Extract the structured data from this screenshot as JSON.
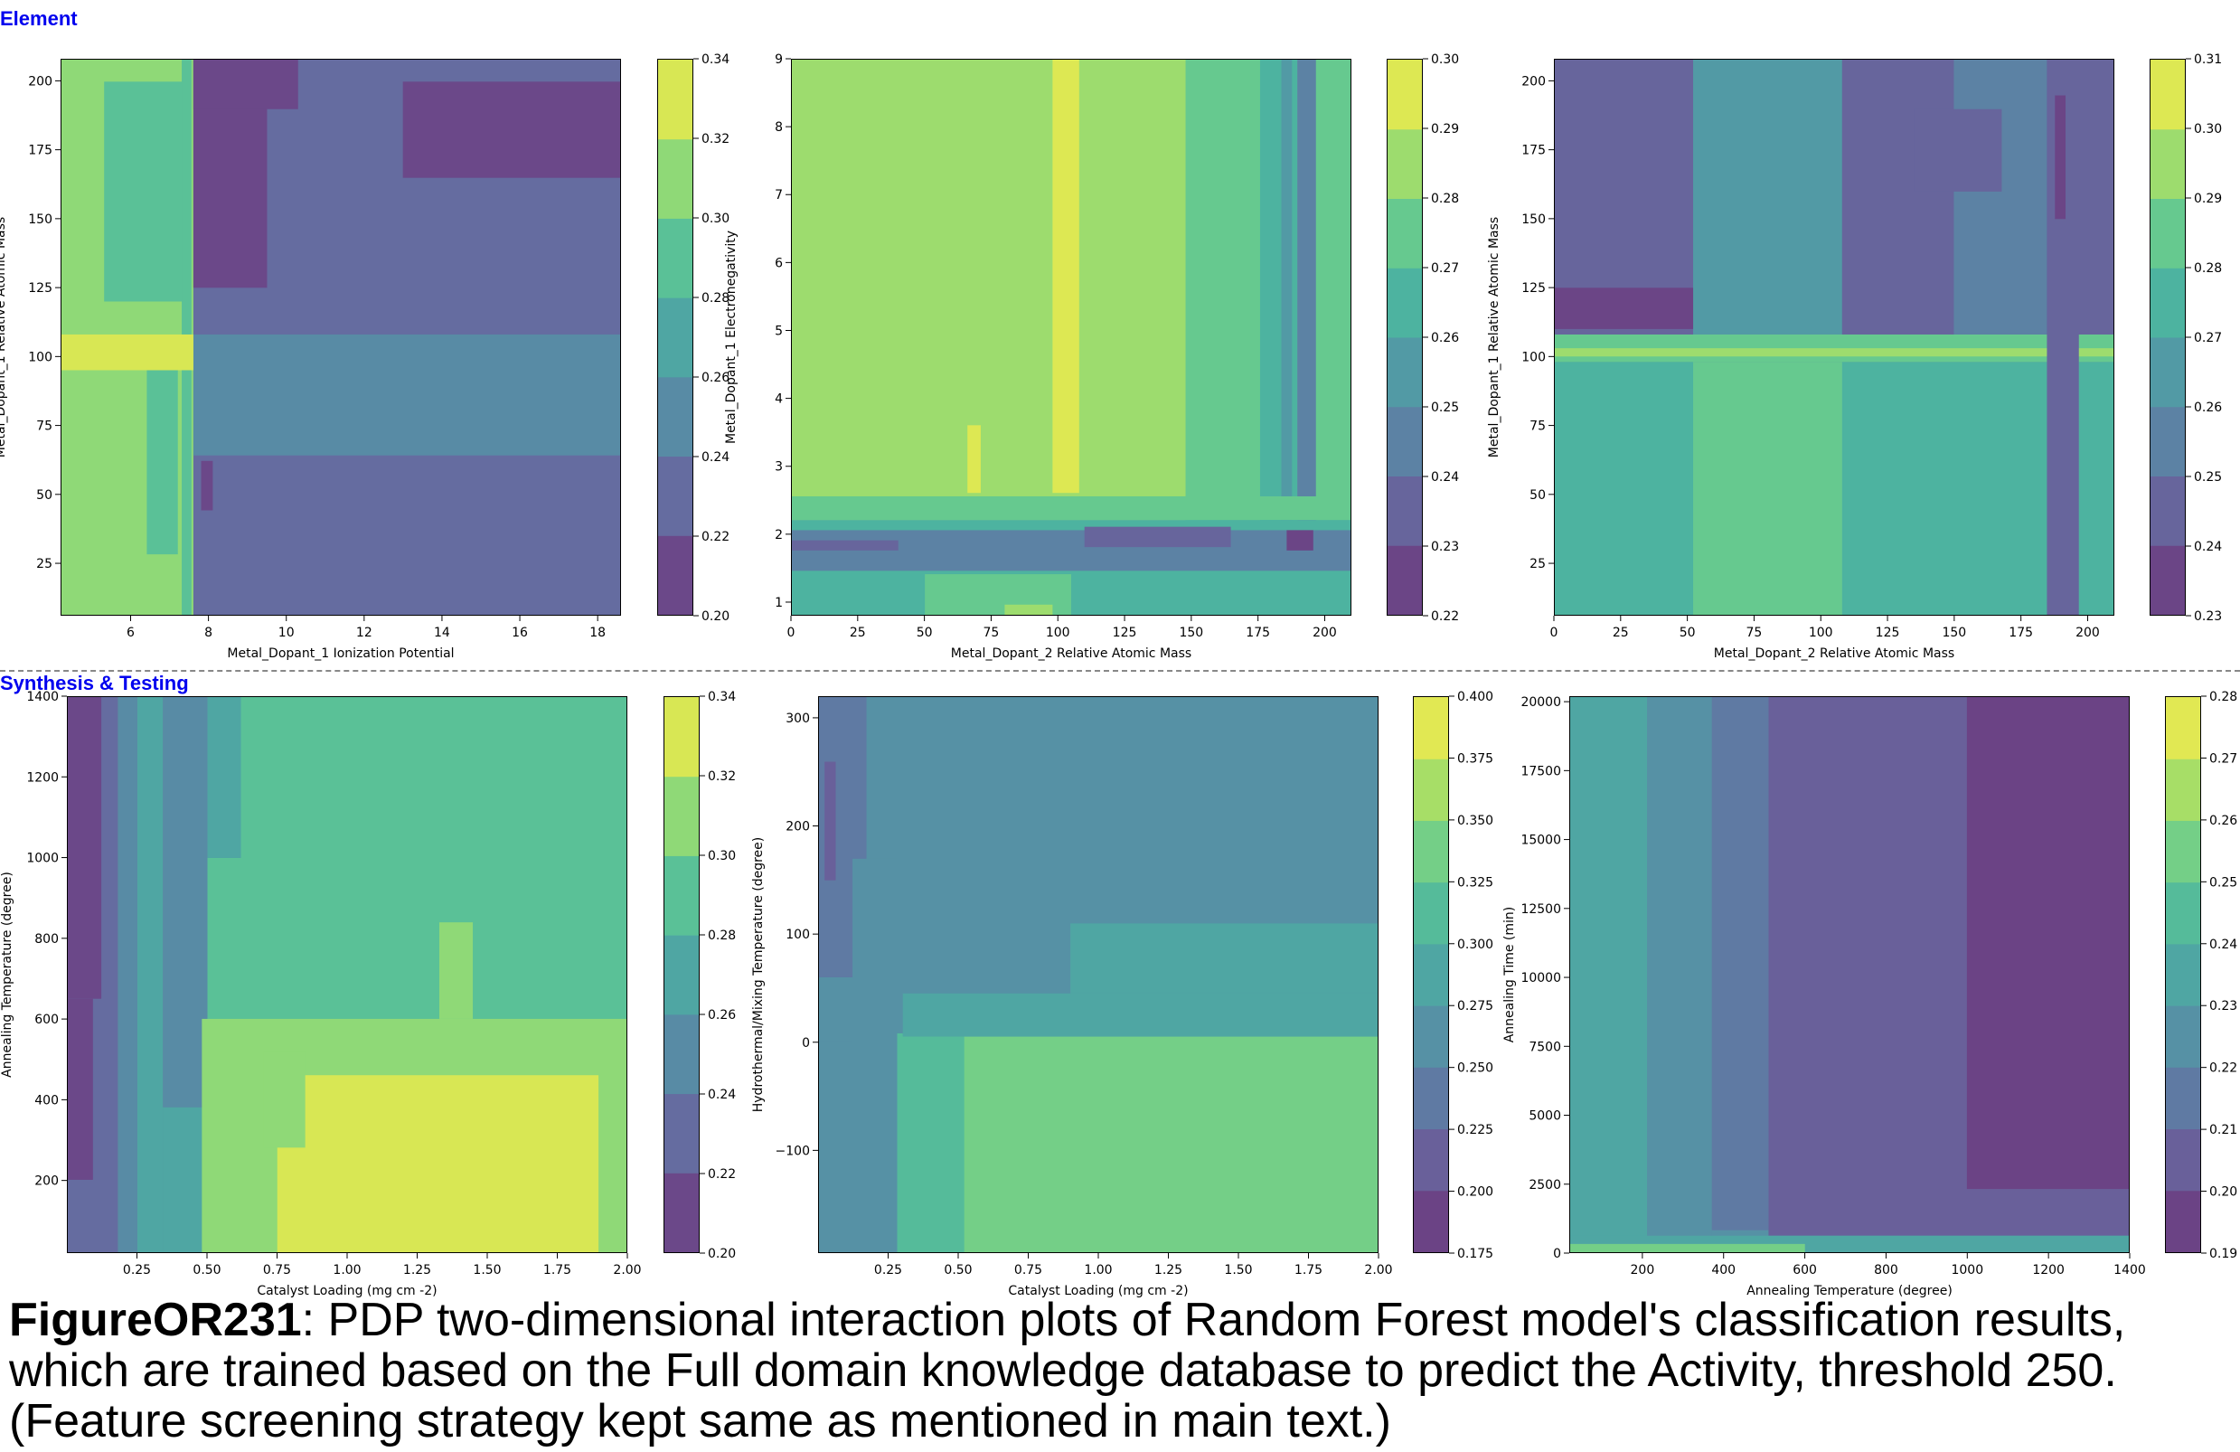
{
  "sections": {
    "top": "Element",
    "bottom": "Synthesis & Testing"
  },
  "caption": {
    "figure_id": "FigureOR231",
    "text": ": PDP two-dimensional interaction plots of Random Forest model's classification results, which are trained based on the Full domain knowledge database to predict the Activity, threshold 250. (Feature screening strategy kept same as mentioned in main text.)"
  },
  "palette": [
    "#440154",
    "#482878",
    "#3e4989",
    "#31688e",
    "#26828e",
    "#1f9e89",
    "#35b779",
    "#6ece58",
    "#b5de2b",
    "#fde725"
  ],
  "chart_data": [
    {
      "type": "heatmap",
      "title": "",
      "xlabel": "Metal_Dopant_1 Ionization Potential",
      "ylabel": "Metal_Dopant_1 Relative Atomic Mass",
      "xlim": [
        4.2,
        18.6
      ],
      "ylim": [
        6,
        208
      ],
      "xticks": [
        6,
        8,
        10,
        12,
        14,
        16,
        18
      ],
      "yticks": [
        25,
        50,
        75,
        100,
        125,
        150,
        175,
        200
      ],
      "colorbar": {
        "min": 0.2,
        "max": 0.34,
        "ticks": [
          0.2,
          0.22,
          0.24,
          0.26,
          0.28,
          0.3,
          0.32,
          0.34
        ],
        "labels": [
          "0.20",
          "0.22",
          "0.24",
          "0.26",
          "0.28",
          "0.30",
          "0.32",
          "0.34"
        ]
      },
      "background": 0.23,
      "regions": [
        {
          "x0": 4.2,
          "x1": 7.6,
          "y0": 6,
          "y1": 208,
          "v": 0.31
        },
        {
          "x0": 5.3,
          "x1": 7.4,
          "y0": 120,
          "y1": 200,
          "v": 0.29
        },
        {
          "x0": 6.4,
          "x1": 7.2,
          "y0": 28,
          "y1": 95,
          "v": 0.29
        },
        {
          "x0": 7.3,
          "x1": 7.55,
          "y0": 6,
          "y1": 208,
          "v": 0.29
        },
        {
          "x0": 7.6,
          "x1": 18.6,
          "y0": 64,
          "y1": 108,
          "v": 0.25
        },
        {
          "x0": 4.2,
          "x1": 7.6,
          "y0": 95,
          "y1": 108,
          "v": 0.33
        },
        {
          "x0": 7.6,
          "x1": 9.5,
          "y0": 125,
          "y1": 208,
          "v": 0.21
        },
        {
          "x0": 7.6,
          "x1": 10.3,
          "y0": 190,
          "y1": 208,
          "v": 0.21
        },
        {
          "x0": 13.0,
          "x1": 18.6,
          "y0": 165,
          "y1": 200,
          "v": 0.21
        },
        {
          "x0": 7.8,
          "x1": 8.1,
          "y0": 44,
          "y1": 62,
          "v": 0.21
        }
      ]
    },
    {
      "type": "heatmap",
      "title": "",
      "xlabel": "Metal_Dopant_2 Relative Atomic Mass",
      "ylabel": "Metal_Dopant_1 Electronegativity",
      "xlim": [
        0,
        210
      ],
      "ylim": [
        0.8,
        9
      ],
      "xticks": [
        0,
        25,
        50,
        75,
        100,
        125,
        150,
        175,
        200
      ],
      "yticks": [
        1,
        2,
        3,
        4,
        5,
        6,
        7,
        8,
        9
      ],
      "colorbar": {
        "min": 0.22,
        "max": 0.3,
        "ticks": [
          0.22,
          0.23,
          0.24,
          0.25,
          0.26,
          0.27,
          0.28,
          0.29,
          0.3
        ],
        "labels": [
          "0.22",
          "0.23",
          "0.24",
          "0.25",
          "0.26",
          "0.27",
          "0.28",
          "0.29",
          "0.30"
        ]
      },
      "background": 0.28,
      "regions": [
        {
          "x0": 98,
          "x1": 108,
          "y0": 2.6,
          "y1": 9,
          "v": 0.295
        },
        {
          "x0": 66,
          "x1": 71,
          "y0": 2.6,
          "y1": 3.6,
          "v": 0.295
        },
        {
          "x0": 148,
          "x1": 210,
          "y0": 0.8,
          "y1": 9,
          "v": 0.27
        },
        {
          "x0": 176,
          "x1": 190,
          "y0": 0.8,
          "y1": 9,
          "v": 0.26
        },
        {
          "x0": 184,
          "x1": 188,
          "y0": 0.8,
          "y1": 9,
          "v": 0.25
        },
        {
          "x0": 190,
          "x1": 197,
          "y0": 0.8,
          "y1": 9,
          "v": 0.245
        },
        {
          "x0": 0,
          "x1": 210,
          "y0": 2.2,
          "y1": 2.55,
          "v": 0.27
        },
        {
          "x0": 0,
          "x1": 210,
          "y0": 0.8,
          "y1": 2.2,
          "v": 0.26
        },
        {
          "x0": 0,
          "x1": 210,
          "y0": 1.45,
          "y1": 2.05,
          "v": 0.245
        },
        {
          "x0": 0,
          "x1": 40,
          "y0": 1.75,
          "y1": 1.9,
          "v": 0.235
        },
        {
          "x0": 110,
          "x1": 165,
          "y0": 1.8,
          "y1": 2.1,
          "v": 0.235
        },
        {
          "x0": 50,
          "x1": 105,
          "y0": 0.8,
          "y1": 1.4,
          "v": 0.27
        },
        {
          "x0": 80,
          "x1": 98,
          "y0": 0.8,
          "y1": 0.95,
          "v": 0.28
        },
        {
          "x0": 186,
          "x1": 196,
          "y0": 1.75,
          "y1": 2.05,
          "v": 0.225
        }
      ]
    },
    {
      "type": "heatmap",
      "title": "",
      "xlabel": "Metal_Dopant_2 Relative Atomic Mass",
      "ylabel": "Metal_Dopant_1 Relative Atomic Mass",
      "xlim": [
        0,
        210
      ],
      "ylim": [
        6,
        208
      ],
      "xticks": [
        0,
        25,
        50,
        75,
        100,
        125,
        150,
        175,
        200
      ],
      "yticks": [
        25,
        50,
        75,
        100,
        125,
        150,
        175,
        200
      ],
      "colorbar": {
        "min": 0.23,
        "max": 0.31,
        "ticks": [
          0.23,
          0.24,
          0.25,
          0.26,
          0.27,
          0.28,
          0.29,
          0.3,
          0.31
        ],
        "labels": [
          "0.23",
          "0.24",
          "0.25",
          "0.26",
          "0.27",
          "0.28",
          "0.29",
          "0.30",
          "0.31"
        ]
      },
      "background": 0.255,
      "regions": [
        {
          "x0": 0,
          "x1": 210,
          "y0": 6,
          "y1": 98,
          "v": 0.275
        },
        {
          "x0": 0,
          "x1": 210,
          "y0": 108,
          "y1": 208,
          "v": 0.255
        },
        {
          "x0": 0,
          "x1": 52,
          "y0": 6,
          "y1": 98,
          "v": 0.27
        },
        {
          "x0": 52,
          "x1": 108,
          "y0": 6,
          "y1": 98,
          "v": 0.28
        },
        {
          "x0": 0,
          "x1": 210,
          "y0": 98,
          "y1": 108,
          "v": 0.285
        },
        {
          "x0": 0,
          "x1": 210,
          "y0": 100,
          "y1": 103,
          "v": 0.3
        },
        {
          "x0": 52,
          "x1": 108,
          "y0": 108,
          "y1": 208,
          "v": 0.265
        },
        {
          "x0": 0,
          "x1": 52,
          "y0": 108,
          "y1": 208,
          "v": 0.25
        },
        {
          "x0": 108,
          "x1": 210,
          "y0": 108,
          "y1": 208,
          "v": 0.25
        },
        {
          "x0": 150,
          "x1": 185,
          "y0": 108,
          "y1": 208,
          "v": 0.255
        },
        {
          "x0": 185,
          "x1": 197,
          "y0": 6,
          "y1": 208,
          "v": 0.245
        },
        {
          "x0": 188,
          "x1": 192,
          "y0": 150,
          "y1": 195,
          "v": 0.235
        },
        {
          "x0": 135,
          "x1": 168,
          "y0": 160,
          "y1": 190,
          "v": 0.245
        },
        {
          "x0": 0,
          "x1": 52,
          "y0": 110,
          "y1": 125,
          "v": 0.24
        }
      ]
    },
    {
      "type": "heatmap",
      "title": "",
      "xlabel": "Catalyst Loading (mg cm -2)",
      "ylabel": "Annealing Temperature (degree)",
      "xlim": [
        0,
        2
      ],
      "ylim": [
        20,
        1400
      ],
      "xticks": [
        0.25,
        0.5,
        0.75,
        1.0,
        1.25,
        1.5,
        1.75,
        2.0
      ],
      "xticklabels": [
        "0.25",
        "0.50",
        "0.75",
        "1.00",
        "1.25",
        "1.50",
        "1.75",
        "2.00"
      ],
      "yticks": [
        200,
        400,
        600,
        800,
        1000,
        1200,
        1400
      ],
      "colorbar": {
        "min": 0.2,
        "max": 0.34,
        "ticks": [
          0.2,
          0.22,
          0.24,
          0.26,
          0.28,
          0.3,
          0.32,
          0.34
        ],
        "labels": [
          "0.20",
          "0.22",
          "0.24",
          "0.26",
          "0.28",
          "0.30",
          "0.32",
          "0.34"
        ]
      },
      "background": 0.29,
      "regions": [
        {
          "x0": 0,
          "x1": 0.18,
          "y0": 20,
          "y1": 1400,
          "v": 0.23
        },
        {
          "x0": 0,
          "x1": 0.12,
          "y0": 650,
          "y1": 1400,
          "v": 0.21
        },
        {
          "x0": 0,
          "x1": 0.09,
          "y0": 200,
          "y1": 650,
          "v": 0.21
        },
        {
          "x0": 0.18,
          "x1": 0.25,
          "y0": 20,
          "y1": 1400,
          "v": 0.25
        },
        {
          "x0": 0.25,
          "x1": 0.34,
          "y0": 20,
          "y1": 1400,
          "v": 0.27
        },
        {
          "x0": 0.34,
          "x1": 0.5,
          "y0": 20,
          "y1": 1400,
          "v": 0.25
        },
        {
          "x0": 0.34,
          "x1": 0.5,
          "y0": 20,
          "y1": 380,
          "v": 0.27
        },
        {
          "x0": 0.5,
          "x1": 0.62,
          "y0": 1000,
          "y1": 1400,
          "v": 0.27
        },
        {
          "x0": 0.48,
          "x1": 2.0,
          "y0": 20,
          "y1": 600,
          "v": 0.31
        },
        {
          "x0": 1.33,
          "x1": 1.45,
          "y0": 600,
          "y1": 840,
          "v": 0.31
        },
        {
          "x0": 0.75,
          "x1": 1.9,
          "y0": 20,
          "y1": 460,
          "v": 0.33
        },
        {
          "x0": 0.7,
          "x1": 0.85,
          "y0": 280,
          "y1": 520,
          "v": 0.31
        }
      ]
    },
    {
      "type": "heatmap",
      "title": "",
      "xlabel": "Catalyst Loading (mg cm -2)",
      "ylabel": "Hydrothermal/Mixing Temperature (degree)",
      "xlim": [
        0,
        2
      ],
      "ylim": [
        -195,
        320
      ],
      "xticks": [
        0.25,
        0.5,
        0.75,
        1.0,
        1.25,
        1.5,
        1.75,
        2.0
      ],
      "xticklabels": [
        "0.25",
        "0.50",
        "0.75",
        "1.00",
        "1.25",
        "1.50",
        "1.75",
        "2.00"
      ],
      "yticks": [
        -100,
        0,
        100,
        200,
        300
      ],
      "yticklabels": [
        "−100",
        "0",
        "100",
        "200",
        "300"
      ],
      "colorbar": {
        "min": 0.175,
        "max": 0.4,
        "ticks": [
          0.175,
          0.2,
          0.225,
          0.25,
          0.275,
          0.3,
          0.325,
          0.35,
          0.375,
          0.4
        ],
        "labels": [
          "0.175",
          "0.200",
          "0.225",
          "0.250",
          "0.275",
          "0.300",
          "0.325",
          "0.350",
          "0.375",
          "0.400"
        ]
      },
      "background": 0.262,
      "regions": [
        {
          "x0": 0,
          "x1": 2,
          "y0": -195,
          "y1": 0,
          "v": 0.265
        },
        {
          "x0": 0.27,
          "x1": 2,
          "y0": -195,
          "y1": 8,
          "v": 0.312
        },
        {
          "x0": 0.52,
          "x1": 2,
          "y0": -195,
          "y1": 5,
          "v": 0.337
        },
        {
          "x0": 0,
          "x1": 0.17,
          "y0": 60,
          "y1": 320,
          "v": 0.237
        },
        {
          "x0": 0.02,
          "x1": 0.06,
          "y0": 150,
          "y1": 260,
          "v": 0.212
        },
        {
          "x0": 0.12,
          "x1": 0.28,
          "y0": -195,
          "y1": 170,
          "v": 0.25
        },
        {
          "x0": 0.3,
          "x1": 2,
          "y0": 5,
          "y1": 45,
          "v": 0.287
        },
        {
          "x0": 0.9,
          "x1": 2,
          "y0": 45,
          "y1": 110,
          "v": 0.275
        }
      ]
    },
    {
      "type": "heatmap",
      "title": "",
      "xlabel": "Annealing Temperature (degree)",
      "ylabel": "Annealing Time (min)",
      "xlim": [
        20,
        1400
      ],
      "ylim": [
        0,
        20200
      ],
      "xticks": [
        200,
        400,
        600,
        800,
        1000,
        1200,
        1400
      ],
      "yticks": [
        0,
        2500,
        5000,
        7500,
        10000,
        12500,
        15000,
        17500,
        20000
      ],
      "colorbar": {
        "min": 0.19,
        "max": 0.28,
        "ticks": [
          0.19,
          0.2,
          0.21,
          0.22,
          0.23,
          0.24,
          0.25,
          0.26,
          0.27,
          0.28
        ],
        "labels": [
          "0.19",
          "0.20",
          "0.21",
          "0.22",
          "0.23",
          "0.24",
          "0.25",
          "0.26",
          "0.27",
          "0.28"
        ]
      },
      "background": 0.225,
      "regions": [
        {
          "x0": 20,
          "x1": 210,
          "y0": 0,
          "y1": 20200,
          "v": 0.235
        },
        {
          "x0": 210,
          "x1": 370,
          "y0": 0,
          "y1": 20200,
          "v": 0.225
        },
        {
          "x0": 370,
          "x1": 510,
          "y0": 800,
          "y1": 20200,
          "v": 0.215
        },
        {
          "x0": 510,
          "x1": 1400,
          "y0": 600,
          "y1": 20200,
          "v": 0.205
        },
        {
          "x0": 1000,
          "x1": 1400,
          "y0": 2300,
          "y1": 20200,
          "v": 0.195
        },
        {
          "x0": 20,
          "x1": 1400,
          "y0": 0,
          "y1": 600,
          "v": 0.235
        },
        {
          "x0": 20,
          "x1": 600,
          "y0": 0,
          "y1": 300,
          "v": 0.255
        }
      ]
    }
  ]
}
